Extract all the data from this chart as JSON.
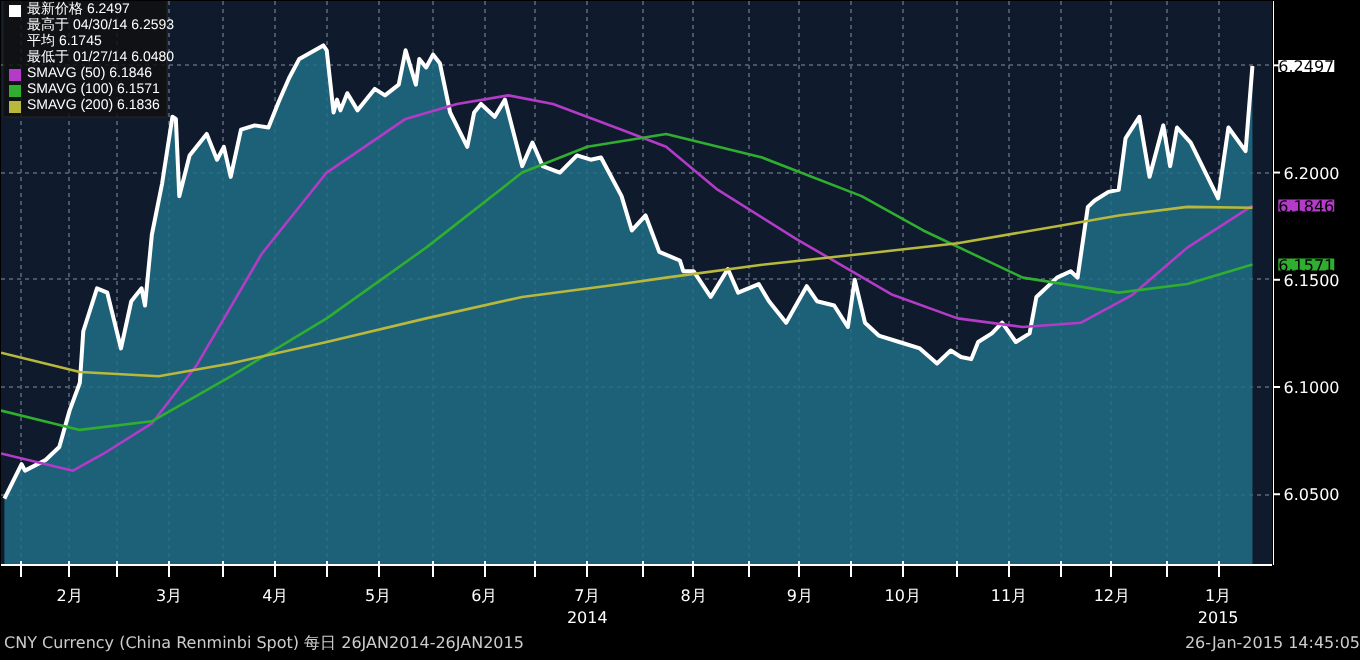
{
  "chart_data": {
    "type": "line",
    "xlim": [
      "2014-01-26",
      "2015-02-01"
    ],
    "ylim": [
      6.017,
      6.28
    ],
    "yticks": [
      {
        "value": 6.05,
        "label": "6.0500"
      },
      {
        "value": 6.1,
        "label": "6.1000"
      },
      {
        "value": 6.15,
        "label": "6.1500"
      },
      {
        "value": 6.2,
        "label": "6.2000"
      },
      {
        "value": 6.25,
        "label": null
      }
    ],
    "xticks": [
      {
        "value": "2014-02-01",
        "label": null
      },
      {
        "value": "2014-02-15",
        "label": "2月"
      },
      {
        "value": "2014-03-01",
        "label": null
      },
      {
        "value": "2014-03-16",
        "label": "3月"
      },
      {
        "value": "2014-04-01",
        "label": null
      },
      {
        "value": "2014-04-16",
        "label": "4月"
      },
      {
        "value": "2014-05-01",
        "label": null
      },
      {
        "value": "2014-05-16",
        "label": "5月"
      },
      {
        "value": "2014-06-01",
        "label": null
      },
      {
        "value": "2014-06-16",
        "label": "6月"
      },
      {
        "value": "2014-07-01",
        "label": null
      },
      {
        "value": "2014-07-16",
        "label": "7月\n2014"
      },
      {
        "value": "2014-08-01",
        "label": null
      },
      {
        "value": "2014-08-16",
        "label": "8月"
      },
      {
        "value": "2014-09-01",
        "label": null
      },
      {
        "value": "2014-09-16",
        "label": "9月"
      },
      {
        "value": "2014-10-01",
        "label": null
      },
      {
        "value": "2014-10-16",
        "label": "10月"
      },
      {
        "value": "2014-11-01",
        "label": null
      },
      {
        "value": "2014-11-16",
        "label": "11月"
      },
      {
        "value": "2014-12-01",
        "label": null
      },
      {
        "value": "2014-12-16",
        "label": "12月"
      },
      {
        "value": "2015-01-01",
        "label": null
      },
      {
        "value": "2015-01-16",
        "label": "1月\n2015"
      }
    ],
    "grid": true,
    "legend": "top left",
    "series": [
      {
        "name": "最新价格  6.2497",
        "type": "area",
        "color": "#ffffff",
        "x": [
          "2014-01-27",
          "2014-02-01",
          "2014-02-02",
          "2014-02-08",
          "2014-02-12",
          "2014-02-15",
          "2014-02-18",
          "2014-02-19",
          "2014-02-23",
          "2014-02-26",
          "2014-03-02",
          "2014-03-05",
          "2014-03-08",
          "2014-03-09",
          "2014-03-11",
          "2014-03-14",
          "2014-03-17",
          "2014-03-18",
          "2014-03-19",
          "2014-03-22",
          "2014-03-27",
          "2014-03-30",
          "2014-04-01",
          "2014-04-03",
          "2014-04-06",
          "2014-04-10",
          "2014-04-14",
          "2014-04-17",
          "2014-04-20",
          "2014-04-23",
          "2014-04-30",
          "2014-05-01",
          "2014-05-03",
          "2014-05-04",
          "2014-05-05",
          "2014-05-07",
          "2014-05-10",
          "2014-05-15",
          "2014-05-18",
          "2014-05-22",
          "2014-05-24",
          "2014-05-27",
          "2014-05-28",
          "2014-05-30",
          "2014-06-01",
          "2014-06-03",
          "2014-06-06",
          "2014-06-11",
          "2014-06-13",
          "2014-06-15",
          "2014-06-19",
          "2014-06-22",
          "2014-06-27",
          "2014-06-30",
          "2014-07-03",
          "2014-07-08",
          "2014-07-13",
          "2014-07-17",
          "2014-07-20",
          "2014-07-26",
          "2014-07-29",
          "2014-08-02",
          "2014-08-06",
          "2014-08-12",
          "2014-08-13",
          "2014-08-16",
          "2014-08-21",
          "2014-08-26",
          "2014-08-29",
          "2014-09-04",
          "2014-09-07",
          "2014-09-12",
          "2014-09-18",
          "2014-09-21",
          "2014-09-26",
          "2014-09-30",
          "2014-10-02",
          "2014-10-05",
          "2014-10-09",
          "2014-10-15",
          "2014-10-21",
          "2014-10-26",
          "2014-10-30",
          "2014-11-02",
          "2014-11-05",
          "2014-11-07",
          "2014-11-11",
          "2014-11-14",
          "2014-11-18",
          "2014-11-22",
          "2014-11-24",
          "2014-11-30",
          "2014-12-04",
          "2014-12-06",
          "2014-12-09",
          "2014-12-11",
          "2014-12-15",
          "2014-12-18",
          "2014-12-20",
          "2014-12-24",
          "2014-12-27",
          "2014-12-31",
          "2015-01-02",
          "2015-01-04",
          "2015-01-08",
          "2015-01-16",
          "2015-01-19",
          "2015-01-24",
          "2015-01-26"
        ],
        "values": [
          6.048,
          6.064,
          6.061,
          6.066,
          6.072,
          6.089,
          6.102,
          6.126,
          6.146,
          6.144,
          6.118,
          6.14,
          6.146,
          6.138,
          6.171,
          6.195,
          6.226,
          6.225,
          6.189,
          6.208,
          6.218,
          6.206,
          6.212,
          6.198,
          6.22,
          6.222,
          6.221,
          6.233,
          6.244,
          6.253,
          6.2593,
          6.257,
          6.228,
          6.234,
          6.229,
          6.237,
          6.229,
          6.239,
          6.236,
          6.241,
          6.257,
          6.241,
          6.253,
          6.249,
          6.255,
          6.251,
          6.228,
          6.212,
          6.228,
          6.232,
          6.226,
          6.234,
          6.203,
          6.214,
          6.203,
          6.2,
          6.208,
          6.206,
          6.207,
          6.189,
          6.173,
          6.18,
          6.163,
          6.159,
          6.154,
          6.154,
          6.142,
          6.155,
          6.144,
          6.148,
          6.14,
          6.13,
          6.147,
          6.14,
          6.138,
          6.128,
          6.15,
          6.13,
          6.124,
          6.121,
          6.118,
          6.111,
          6.117,
          6.114,
          6.113,
          6.121,
          6.125,
          6.13,
          6.121,
          6.125,
          6.142,
          6.151,
          6.154,
          6.151,
          6.184,
          6.187,
          6.191,
          6.192,
          6.216,
          6.226,
          6.198,
          6.222,
          6.203,
          6.221,
          6.214,
          6.188,
          6.221,
          6.21,
          6.2497
        ],
        "value_labels": [
          null,
          null,
          null,
          null,
          null,
          null,
          null,
          null,
          null,
          null,
          null,
          null,
          null,
          null,
          null,
          null,
          null,
          null,
          null,
          null,
          null,
          null,
          null,
          null,
          null,
          null,
          null,
          null,
          null,
          null,
          null,
          null,
          null,
          null,
          null,
          null,
          null,
          null,
          null,
          null,
          null,
          null,
          null,
          null,
          null,
          null,
          null,
          null,
          null,
          null,
          null,
          null,
          null,
          null,
          null,
          null,
          null,
          null,
          null,
          null,
          null,
          null,
          null,
          null,
          null,
          null,
          null,
          null,
          null,
          null,
          null,
          null,
          null,
          null,
          null,
          null,
          null,
          null,
          null,
          null,
          null,
          null,
          null,
          null,
          null,
          null,
          null,
          null,
          null,
          null,
          null,
          null,
          null,
          null,
          null,
          null,
          null,
          null,
          null,
          null,
          null,
          null,
          null,
          null,
          null,
          null,
          null,
          null,
          "6.2497"
        ]
      },
      {
        "name": "SMAVG (50)  6.1846",
        "color": "#b23cc8",
        "x": [
          "2014-01-26",
          "2014-02-16",
          "2014-02-25",
          "2014-03-11",
          "2014-03-24",
          "2014-04-12",
          "2014-05-01",
          "2014-05-24",
          "2014-06-08",
          "2014-06-23",
          "2014-07-06",
          "2014-07-26",
          "2014-08-08",
          "2014-08-23",
          "2014-09-15",
          "2014-10-13",
          "2014-11-01",
          "2014-11-20",
          "2014-12-07",
          "2014-12-22",
          "2015-01-07",
          "2015-01-26"
        ],
        "values": [
          6.069,
          6.061,
          6.069,
          6.083,
          6.11,
          6.162,
          6.2,
          6.225,
          6.232,
          6.236,
          6.232,
          6.22,
          6.212,
          6.192,
          6.169,
          6.143,
          6.132,
          6.128,
          6.13,
          6.143,
          6.165,
          6.1846
        ],
        "value_labels": [
          null,
          null,
          null,
          null,
          null,
          null,
          null,
          null,
          null,
          null,
          null,
          null,
          null,
          null,
          null,
          null,
          null,
          null,
          null,
          null,
          null,
          "6.1846"
        ]
      },
      {
        "name": "SMAVG (100)  6.1571",
        "color": "#2fae2f",
        "x": [
          "2014-01-26",
          "2014-02-18",
          "2014-03-11",
          "2014-04-03",
          "2014-05-01",
          "2014-05-30",
          "2014-06-27",
          "2014-07-16",
          "2014-08-08",
          "2014-09-05",
          "2014-10-04",
          "2014-10-22",
          "2014-11-20",
          "2014-12-18",
          "2015-01-07",
          "2015-01-26"
        ],
        "values": [
          6.089,
          6.08,
          6.084,
          6.105,
          6.132,
          6.165,
          6.2,
          6.212,
          6.218,
          6.207,
          6.189,
          6.173,
          6.151,
          6.144,
          6.148,
          6.1571
        ],
        "value_labels": [
          null,
          null,
          null,
          null,
          null,
          null,
          null,
          null,
          null,
          null,
          null,
          null,
          null,
          null,
          null,
          "6.1571"
        ]
      },
      {
        "name": "SMAVG (200)  6.1836",
        "color": "#b8b83c",
        "x": [
          "2014-01-26",
          "2014-02-18",
          "2014-03-13",
          "2014-04-03",
          "2014-05-01",
          "2014-05-30",
          "2014-06-27",
          "2014-07-26",
          "2014-08-08",
          "2014-09-05",
          "2014-10-04",
          "2014-11-01",
          "2014-11-30",
          "2014-12-18",
          "2015-01-07",
          "2015-01-26"
        ],
        "values": [
          6.116,
          6.107,
          6.105,
          6.111,
          6.121,
          6.132,
          6.142,
          6.148,
          6.151,
          6.157,
          6.162,
          6.167,
          6.175,
          6.18,
          6.184,
          6.1836
        ]
      }
    ],
    "annotations": [
      "最高于 04/30/14  6.2593",
      "平均  6.1745",
      "最低于 01/27/14  6.0480",
      "CNY Currency (China Renminbi Spot)  每日 26JAN2014-26JAN2015",
      "26-Jan-2015 14:45:05"
    ]
  }
}
